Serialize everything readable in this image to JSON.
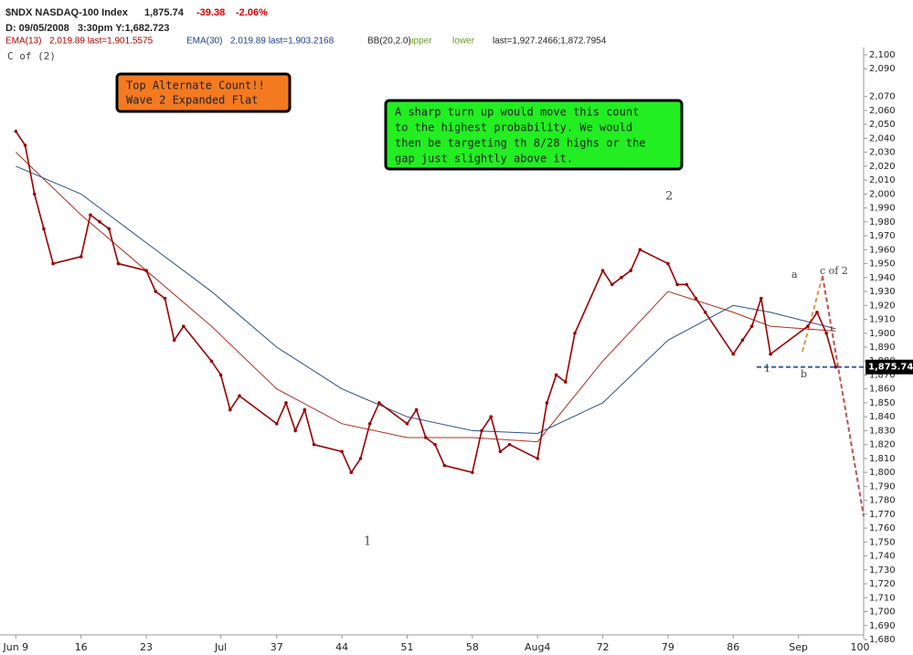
{
  "chart_data": {
    "type": "line",
    "title": "$NDX NASDAQ-100 Index",
    "last": "1,875.74",
    "change": "-39.38",
    "change_pct": "-2.06%",
    "subtitle": "D: 09/05/2008   3:30pm Y:1,682.723",
    "indicators": [
      "EMA(13)",
      "2,019.89 last=1,901.5575",
      "EMA(30)",
      "2,019.89 last=1,903.2168",
      "BB(20,2.0)",
      "upper",
      "lower",
      "last=1,927.2466;1,872.7954"
    ],
    "corner_label": "C of (2)",
    "x": [
      9,
      10,
      11,
      12,
      13,
      16,
      17,
      18,
      19,
      20,
      23,
      24,
      25,
      26,
      27,
      30,
      31,
      32,
      33,
      37,
      38,
      39,
      40,
      41,
      44,
      45,
      46,
      47,
      48,
      51,
      52,
      53,
      54,
      55,
      58,
      59,
      60,
      61,
      62,
      65,
      66,
      67,
      68,
      69,
      72,
      73,
      74,
      75,
      76,
      79,
      80,
      81,
      82,
      83,
      86,
      87,
      88,
      89,
      90,
      94,
      95,
      96,
      97
    ],
    "series": [
      {
        "name": "$NDX",
        "color": "#9b0000",
        "values": [
          2045,
          2035,
          2000,
          1975,
          1950,
          1955,
          1985,
          1980,
          1975,
          1950,
          1945,
          1930,
          1925,
          1895,
          1905,
          1880,
          1870,
          1845,
          1855,
          1835,
          1850,
          1830,
          1845,
          1820,
          1815,
          1800,
          1810,
          1835,
          1850,
          1835,
          1845,
          1825,
          1820,
          1805,
          1800,
          1830,
          1840,
          1815,
          1820,
          1810,
          1850,
          1870,
          1865,
          1900,
          1945,
          1935,
          1940,
          1945,
          1960,
          1950,
          1935,
          1935,
          1925,
          1915,
          1885,
          1895,
          1905,
          1925,
          1885,
          1905,
          1915,
          1900,
          1875.74
        ]
      }
    ],
    "ema": [
      {
        "x": [
          9,
          16,
          23,
          30,
          37,
          44,
          51,
          58,
          65,
          72,
          79,
          86,
          90,
          97
        ],
        "color": "#b03020",
        "values": [
          2030,
          1985,
          1945,
          1905,
          1860,
          1835,
          1825,
          1825,
          1822,
          1880,
          1930,
          1915,
          1905,
          1901.56
        ]
      },
      {
        "x": [
          9,
          16,
          23,
          30,
          37,
          44,
          51,
          58,
          65,
          72,
          79,
          86,
          90,
          97
        ],
        "color": "#2a4f8a",
        "values": [
          2020,
          2000,
          1965,
          1930,
          1890,
          1860,
          1840,
          1830,
          1828,
          1850,
          1895,
          1920,
          1915,
          1903.22
        ]
      }
    ],
    "last_value": {
      "value": 1875.74,
      "label": "1,875.74"
    },
    "xlim": [
      7.3,
      100
    ],
    "xticks": [
      {
        "value": 9,
        "label": "Jun 9"
      },
      16,
      23,
      {
        "value": 31,
        "label": "Jul"
      },
      37,
      44,
      51,
      58,
      {
        "value": 65,
        "label": "Aug4"
      },
      72,
      79,
      86,
      {
        "value": 93,
        "label": "Sep"
      },
      100
    ],
    "ylim": [
      1680,
      2100
    ],
    "yticks": [
      {
        "value": 1680,
        "label": "1,680"
      },
      {
        "value": 1690,
        "label": "1,690"
      },
      {
        "value": 1700,
        "label": "1,700"
      },
      {
        "value": 1710,
        "label": "1,710"
      },
      {
        "value": 1720,
        "label": "1,720"
      },
      {
        "value": 1730,
        "label": "1,730"
      },
      {
        "value": 1740,
        "label": "1,740"
      },
      {
        "value": 1750,
        "label": "1,750"
      },
      {
        "value": 1760,
        "label": "1,760"
      },
      {
        "value": 1770,
        "label": "1,770"
      },
      {
        "value": 1780,
        "label": "1,780"
      },
      {
        "value": 1790,
        "label": "1,790"
      },
      {
        "value": 1800,
        "label": "1,800"
      },
      {
        "value": 1810,
        "label": "1,810"
      },
      {
        "value": 1820,
        "label": "1,820"
      },
      {
        "value": 1830,
        "label": "1,830"
      },
      {
        "value": 1840,
        "label": "1,840"
      },
      {
        "value": 1850,
        "label": "1,850"
      },
      {
        "value": 1860,
        "label": "1,860"
      },
      {
        "value": 1870,
        "label": "1,870"
      },
      {
        "value": 1880,
        "label": "1,880"
      },
      {
        "value": 1890,
        "label": "1,890"
      },
      {
        "value": 1900,
        "label": "1,900"
      },
      {
        "value": 1910,
        "label": "1,910"
      },
      {
        "value": 1920,
        "label": "1,920"
      },
      {
        "value": 1930,
        "label": "1,930"
      },
      {
        "value": 1940,
        "label": "1,940"
      },
      {
        "value": 1950,
        "label": "1,950"
      },
      {
        "value": 1960,
        "label": "1,960"
      },
      {
        "value": 1970,
        "label": "1,970"
      },
      {
        "value": 1980,
        "label": "1,980"
      },
      {
        "value": 1990,
        "label": "1,990"
      },
      {
        "value": 2000,
        "label": "2,000"
      },
      {
        "value": 2010,
        "label": "2,010"
      },
      {
        "value": 2020,
        "label": "2,020"
      },
      {
        "value": 2030,
        "label": "2,030"
      },
      {
        "value": 2040,
        "label": "2,040"
      },
      {
        "value": 2050,
        "label": "2,050"
      },
      {
        "value": 2060,
        "label": "2,060"
      },
      {
        "value": 2070,
        "label": "2,070"
      },
      {
        "value": 2090,
        "label": "2,090"
      },
      {
        "value": 2100,
        "label": "2,100"
      }
    ],
    "annotations": {
      "box1": [
        "Top Alternate Count!!",
        "Wave 2 Expanded Flat"
      ],
      "box2": [
        "A sharp turn up would move this count",
        "to the highest probability.  We would",
        "then be targeting th 8/28 highs or the",
        "gap just slightly above it."
      ],
      "wave_1": "1",
      "wave_2": "2",
      "wave_a": "a",
      "wave_b": "b",
      "wave_1_small": "1",
      "wave_c": "c of 2"
    }
  }
}
